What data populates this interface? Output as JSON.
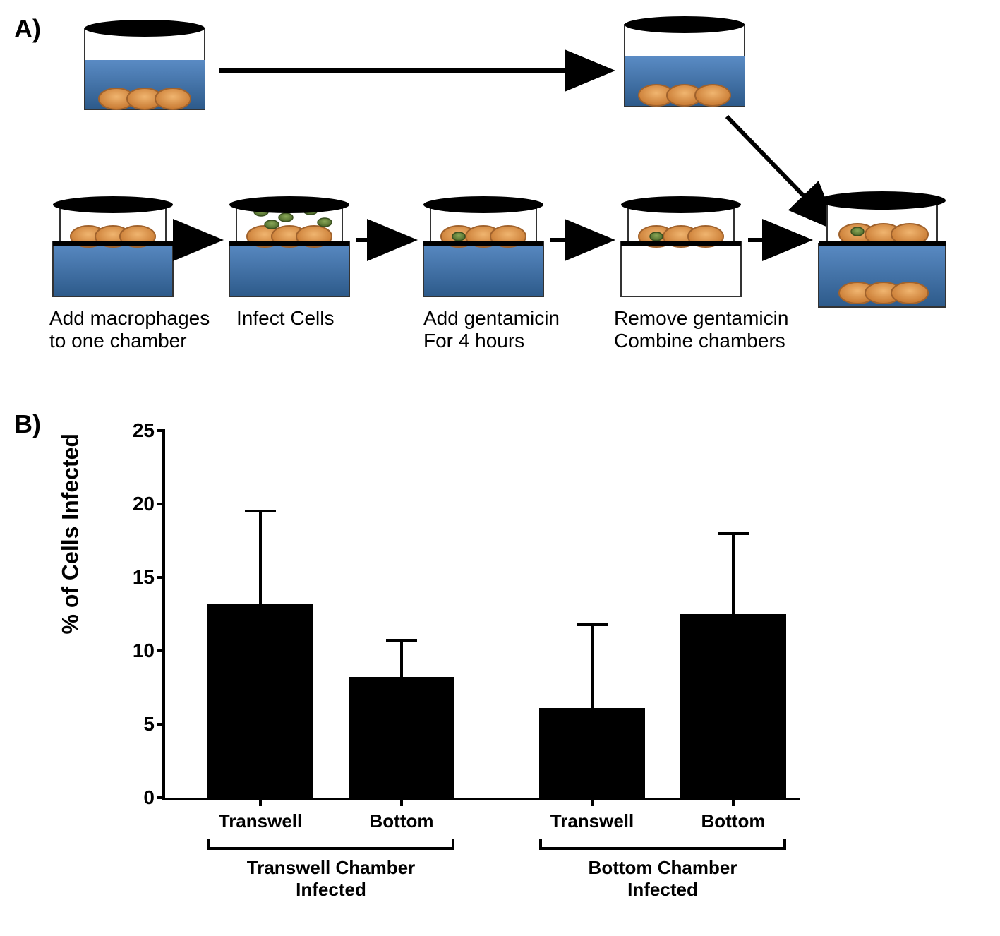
{
  "panelA": {
    "label": "A)",
    "steps": [
      {
        "line1": "Add macrophages",
        "line2": "to one chamber"
      },
      {
        "line1": "Infect Cells",
        "line2": ""
      },
      {
        "line1": "Add gentamicin",
        "line2": "For 4 hours"
      },
      {
        "line1": "Remove gentamicin",
        "line2": "Combine chambers"
      }
    ],
    "colors": {
      "media": "#3b6a9b",
      "media_light": "#5a8bc4",
      "cell_fill": "#d98b3f",
      "cell_stroke": "#a0622c",
      "bacteria": "#5a7a3a",
      "dish_black": "#000000"
    }
  },
  "panelB": {
    "label": "B)",
    "chart": {
      "type": "bar",
      "y_axis_label": "% of Cells Infected",
      "y_ticks": [
        0,
        5,
        10,
        15,
        20,
        25
      ],
      "ymax": 25,
      "bars": [
        {
          "x_label": "Transwell",
          "value": 13.2,
          "error": 6.3,
          "group": 0
        },
        {
          "x_label": "Bottom",
          "value": 8.2,
          "error": 2.5,
          "group": 0
        },
        {
          "x_label": "Transwell",
          "value": 6.1,
          "error": 5.7,
          "group": 1
        },
        {
          "x_label": "Bottom",
          "value": 12.5,
          "error": 5.5,
          "group": 1
        }
      ],
      "groups": [
        {
          "label_line1": "Transwell Chamber",
          "label_line2": "Infected"
        },
        {
          "label_line1": "Bottom Chamber",
          "label_line2": "Infected"
        }
      ],
      "bar_color": "#000000",
      "axis_color": "#000000",
      "axis_fontsize": 28,
      "label_fontsize": 32
    }
  }
}
